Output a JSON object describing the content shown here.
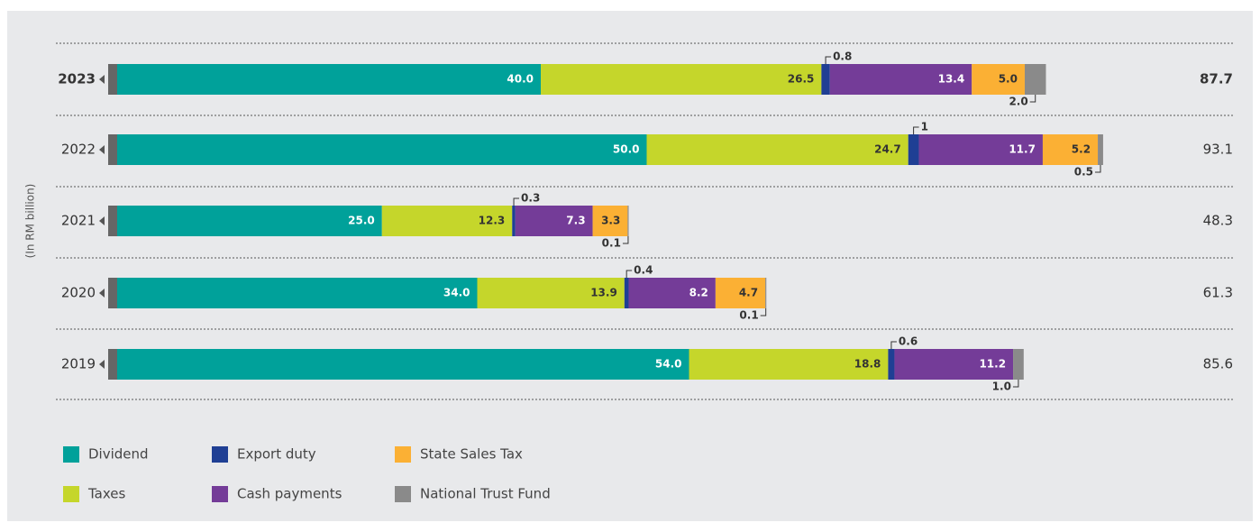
{
  "chart_data": {
    "type": "stacked-barh",
    "y_label": "(In RM billion)",
    "categories": [
      "2023",
      "2022",
      "2021",
      "2020",
      "2019"
    ],
    "series": [
      {
        "name": "Dividend",
        "color": "#00a19a",
        "values": [
          40.0,
          50.0,
          25.0,
          34.0,
          54.0
        ],
        "value_labels": [
          "40.0",
          "50.0",
          "25.0",
          "34.0",
          "54.0"
        ]
      },
      {
        "name": "Taxes",
        "color": "#c5d62b",
        "values": [
          26.5,
          24.7,
          12.3,
          13.9,
          18.8
        ]
      },
      {
        "name": "Export duty",
        "color": "#1f3f94",
        "values": [
          0.8,
          1.0,
          0.3,
          0.4,
          0.6
        ]
      },
      {
        "name": "Cash payments",
        "color": "#743c98",
        "values": [
          13.4,
          11.7,
          7.3,
          8.2,
          11.2
        ]
      },
      {
        "name": "State Sales Tax",
        "color": "#fbb034",
        "values": [
          5.0,
          5.2,
          3.3,
          4.7,
          null
        ],
        "value_labels": [
          "5.0",
          "5.2",
          "3.3",
          "4.7",
          null
        ]
      },
      {
        "name": "National Trust Fund",
        "color": "#8a8a8a",
        "values": [
          2.0,
          0.5,
          0.1,
          0.1,
          1.0
        ],
        "value_labels": [
          "2.0",
          "0.5",
          "0.1",
          "0.1",
          "1.0"
        ]
      }
    ],
    "totals": [
      87.7,
      93.1,
      48.3,
      61.3,
      85.6
    ]
  }
}
